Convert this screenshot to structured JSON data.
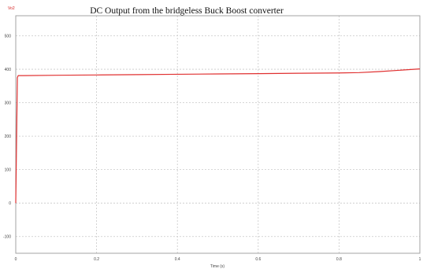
{
  "chart_data": {
    "type": "line",
    "title": "DC Output from the bridgeless Buck Boost converter",
    "xlabel": "Time (s)",
    "ylabel": "",
    "xlim": [
      0,
      1
    ],
    "ylim": [
      -150,
      560
    ],
    "x_ticks": [
      0,
      0.2,
      0.4,
      0.6,
      0.8,
      1
    ],
    "x_tick_labels": [
      "0",
      "0.2",
      "0.4",
      "0.6",
      "0.8",
      "1"
    ],
    "y_ticks": [
      -100,
      0,
      100,
      200,
      300,
      400,
      500
    ],
    "y_tick_labels": [
      "-100",
      "0",
      "100",
      "200",
      "300",
      "400",
      "500"
    ],
    "grid": true,
    "series": [
      {
        "name": "Vo2",
        "color": "#e03030",
        "x": [
          0,
          0.004,
          0.006,
          0.02,
          0.1,
          0.2,
          0.3,
          0.4,
          0.5,
          0.6,
          0.7,
          0.8,
          0.85,
          0.9,
          0.95,
          1.0
        ],
        "y": [
          0,
          375,
          381,
          381,
          382,
          383,
          384,
          385,
          386,
          387,
          388,
          389,
          390,
          393,
          397,
          401
        ]
      }
    ]
  }
}
